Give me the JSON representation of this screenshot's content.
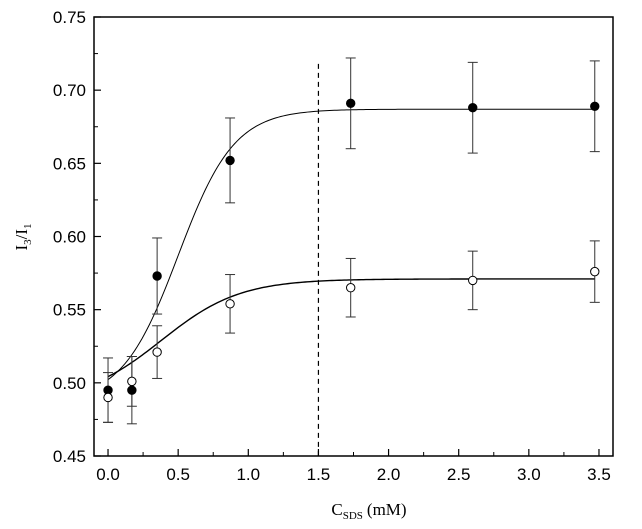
{
  "chart_data": {
    "type": "scatter",
    "title": "",
    "xlabel": {
      "main": "C",
      "sub": "SDS",
      "unit": "(mM)"
    },
    "ylabel": {
      "a": "I",
      "a_sub": "3",
      "sep": "/",
      "b": "I",
      "b_sub": "1"
    },
    "xlim": [
      -0.1,
      3.6
    ],
    "ylim": [
      0.45,
      0.75
    ],
    "xticks": [
      0.0,
      0.5,
      1.0,
      1.5,
      2.0,
      2.5,
      3.0,
      3.5
    ],
    "xtick_labels": [
      "0.0",
      "0.5",
      "1.0",
      "1.5",
      "2.0",
      "2.5",
      "3.0",
      "3.5"
    ],
    "yticks": [
      0.45,
      0.5,
      0.55,
      0.6,
      0.65,
      0.7,
      0.75
    ],
    "ytick_labels": [
      "0.45",
      "0.50",
      "0.55",
      "0.60",
      "0.65",
      "0.70",
      "0.75"
    ],
    "grid": false,
    "reference_line": {
      "x": 1.5,
      "style": "dashed"
    },
    "series": [
      {
        "marker": "filled-circle",
        "x": [
          0.0,
          0.17,
          0.35,
          0.87,
          1.73,
          2.6,
          3.47
        ],
        "y": [
          0.495,
          0.495,
          0.573,
          0.652,
          0.691,
          0.688,
          0.689
        ],
        "yerr": [
          0.022,
          0.023,
          0.026,
          0.029,
          0.031,
          0.031,
          0.031
        ],
        "fit": {
          "y0": 0.487,
          "ymax": 0.687,
          "x0": 0.5,
          "width": 0.2
        }
      },
      {
        "marker": "open-circle",
        "x": [
          0.0,
          0.17,
          0.35,
          0.87,
          1.73,
          2.6,
          3.47
        ],
        "y": [
          0.49,
          0.501,
          0.521,
          0.554,
          0.565,
          0.57,
          0.576
        ],
        "yerr": [
          0.017,
          0.017,
          0.018,
          0.02,
          0.02,
          0.02,
          0.021
        ],
        "fit": {
          "y0": 0.487,
          "ymax": 0.571,
          "x0": 0.38,
          "width": 0.28
        }
      }
    ]
  }
}
